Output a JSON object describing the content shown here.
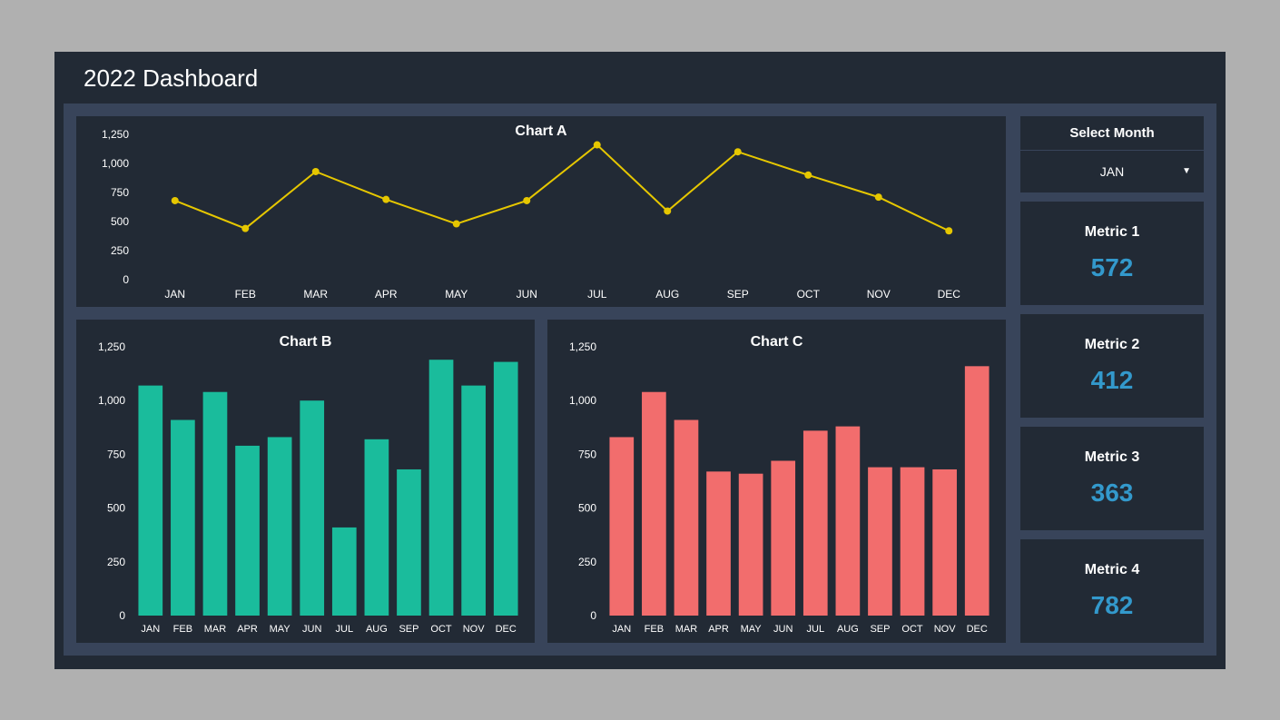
{
  "title": "2022 Dashboard",
  "colors": {
    "page_bg": "#b0b0b0",
    "dashboard_bg": "#222a35",
    "inner_bg": "#38445a",
    "panel_bg": "#222a35",
    "text": "#ffffff",
    "metric_value": "#3399cc",
    "line_series": "#e6c700",
    "bar_b": "#1abc9c",
    "bar_c": "#f26d6d"
  },
  "months": [
    "JAN",
    "FEB",
    "MAR",
    "APR",
    "MAY",
    "JUN",
    "JUL",
    "AUG",
    "SEP",
    "OCT",
    "NOV",
    "DEC"
  ],
  "chart_a": {
    "type": "line",
    "title": "Chart A",
    "categories": [
      "JAN",
      "FEB",
      "MAR",
      "APR",
      "MAY",
      "JUN",
      "JUL",
      "AUG",
      "SEP",
      "OCT",
      "NOV",
      "DEC"
    ],
    "values": [
      680,
      440,
      930,
      690,
      480,
      680,
      1160,
      590,
      1100,
      900,
      710,
      420
    ],
    "ylim": [
      0,
      1250
    ],
    "ytick_step": 250,
    "line_color": "#e6c700",
    "marker_color": "#e6c700",
    "marker_radius": 4,
    "line_width": 2,
    "title_fontsize": 16,
    "label_fontsize": 12,
    "background_color": "#222a35"
  },
  "chart_b": {
    "type": "bar",
    "title": "Chart B",
    "categories": [
      "JAN",
      "FEB",
      "MAR",
      "APR",
      "MAY",
      "JUN",
      "JUL",
      "AUG",
      "SEP",
      "OCT",
      "NOV",
      "DEC"
    ],
    "values": [
      1070,
      910,
      1040,
      790,
      830,
      1000,
      410,
      820,
      680,
      1190,
      1070,
      1180
    ],
    "ylim": [
      0,
      1250
    ],
    "ytick_step": 250,
    "bar_color": "#1abc9c",
    "bar_width": 0.75,
    "title_fontsize": 16,
    "label_fontsize": 11,
    "background_color": "#222a35"
  },
  "chart_c": {
    "type": "bar",
    "title": "Chart C",
    "categories": [
      "JAN",
      "FEB",
      "MAR",
      "APR",
      "MAY",
      "JUN",
      "JUL",
      "AUG",
      "SEP",
      "OCT",
      "NOV",
      "DEC"
    ],
    "values": [
      830,
      1040,
      910,
      670,
      660,
      720,
      860,
      880,
      690,
      690,
      680,
      1160
    ],
    "ylim": [
      0,
      1250
    ],
    "ytick_step": 250,
    "bar_color": "#f26d6d",
    "bar_width": 0.75,
    "title_fontsize": 16,
    "label_fontsize": 11,
    "background_color": "#222a35"
  },
  "selector": {
    "label": "Select Month",
    "value": "JAN"
  },
  "metrics": [
    {
      "label": "Metric 1",
      "value": "572"
    },
    {
      "label": "Metric 2",
      "value": "412"
    },
    {
      "label": "Metric 3",
      "value": "363"
    },
    {
      "label": "Metric 4",
      "value": "782"
    }
  ]
}
